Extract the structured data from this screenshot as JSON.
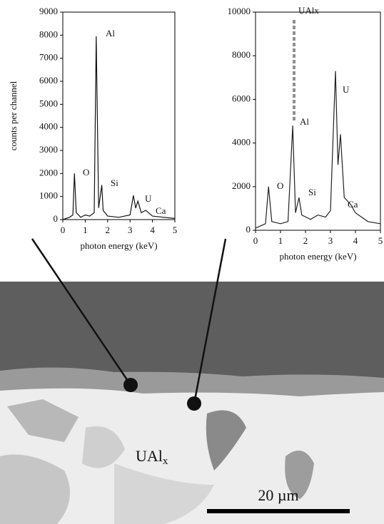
{
  "chart_data": [
    {
      "type": "line",
      "y_label": "counts per channel",
      "x_label": "photon energy (keV)",
      "color": "#111",
      "x": [
        0,
        0.3,
        0.45,
        0.52,
        0.6,
        0.8,
        1.0,
        1.2,
        1.4,
        1.49,
        1.6,
        1.74,
        1.8,
        2.0,
        2.5,
        3.0,
        3.15,
        3.25,
        3.35,
        3.5,
        3.7,
        4.0,
        4.5,
        5
      ],
      "values": [
        0,
        100,
        200,
        2000,
        300,
        100,
        200,
        150,
        300,
        7950,
        500,
        1500,
        400,
        150,
        100,
        200,
        1050,
        500,
        800,
        300,
        400,
        150,
        100,
        50
      ],
      "xlim": [
        0,
        5
      ],
      "xticks": [
        0,
        1,
        2,
        3,
        4,
        5
      ],
      "ylim": [
        0,
        9000
      ],
      "yticks": [
        0,
        1000,
        2000,
        3000,
        4000,
        5000,
        6000,
        7000,
        8000,
        9000
      ],
      "annotations": [
        "O",
        "Al",
        "Si",
        "U",
        "Ca"
      ]
    },
    {
      "type": "line",
      "x_label": "photon energy (keV)",
      "color": "#222",
      "x": [
        0,
        0.4,
        0.52,
        0.65,
        1.0,
        1.3,
        1.49,
        1.6,
        1.74,
        1.85,
        2.2,
        2.5,
        2.8,
        3.0,
        3.2,
        3.3,
        3.4,
        3.55,
        3.8,
        4.0,
        4.5,
        5
      ],
      "values": [
        100,
        300,
        2000,
        400,
        300,
        400,
        4800,
        800,
        1500,
        700,
        500,
        700,
        600,
        900,
        7300,
        3000,
        4400,
        1500,
        1200,
        800,
        400,
        300
      ],
      "xlim": [
        0,
        5
      ],
      "xticks": [
        0,
        1,
        2,
        3,
        4,
        5
      ],
      "ylim": [
        0,
        10000
      ],
      "yticks": [
        0,
        2000,
        4000,
        6000,
        8000,
        10000
      ],
      "annotations": [
        "UAlx",
        "O",
        "Al",
        "Si",
        "U",
        "Ca"
      ]
    }
  ],
  "image": {
    "label": "UAl",
    "label_subscript": "x",
    "scale_bar": "20 µm"
  }
}
